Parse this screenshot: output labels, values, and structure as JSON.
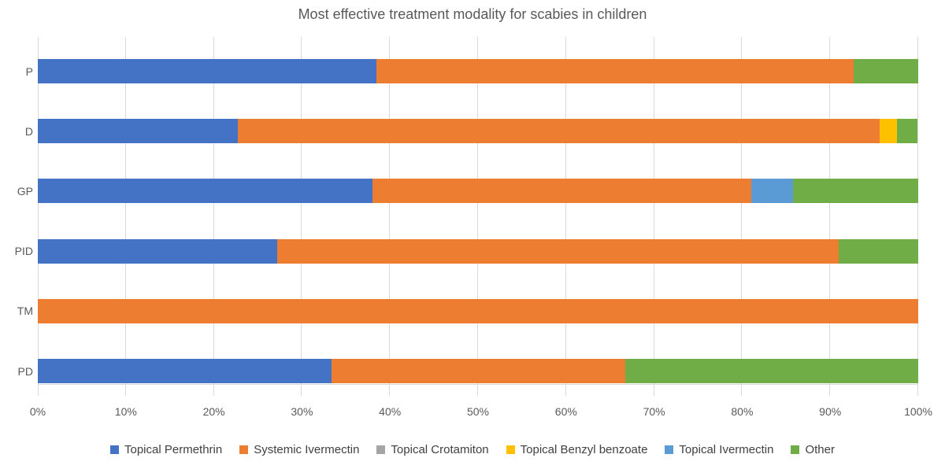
{
  "title": "Most effective treatment modality for scabies in children",
  "chart_data": {
    "type": "bar",
    "orientation": "horizontal",
    "stacked": true,
    "unit": "percent",
    "title": "Most effective treatment modality for scabies in children",
    "categories": [
      "P",
      "D",
      "GP",
      "PID",
      "TM",
      "PD"
    ],
    "series": [
      {
        "name": "Topical Permethrin",
        "color": "#4472C4",
        "values": [
          38.5,
          22.7,
          38.0,
          27.2,
          0,
          33.4
        ]
      },
      {
        "name": "Systemic Ivermectin",
        "color": "#ED7D31",
        "values": [
          54.2,
          72.9,
          43.0,
          63.8,
          100,
          33.3
        ]
      },
      {
        "name": "Topical Crotamiton",
        "color": "#A5A5A5",
        "values": [
          0,
          0,
          0,
          0,
          0,
          0
        ]
      },
      {
        "name": "Topical Benzyl benzoate",
        "color": "#FFC000",
        "values": [
          0,
          2.0,
          0,
          0,
          0,
          0
        ]
      },
      {
        "name": "Topical Ivermectin",
        "color": "#5B9BD5",
        "values": [
          0,
          0,
          4.8,
          0,
          0,
          0
        ]
      },
      {
        "name": "Other",
        "color": "#70AD47",
        "values": [
          7.3,
          2.3,
          14.2,
          9.0,
          0,
          33.3
        ]
      }
    ],
    "x_axis": {
      "min": 0,
      "max": 100,
      "tick_step": 10,
      "tick_labels": [
        "0%",
        "10%",
        "20%",
        "30%",
        "40%",
        "50%",
        "60%",
        "70%",
        "80%",
        "90%",
        "100%"
      ],
      "grid": true
    },
    "legend_position": "bottom",
    "xlabel": "",
    "ylabel": ""
  },
  "colors": {
    "grid": "#D9D9D9",
    "axis_text": "#595959",
    "legend_text": "#404040",
    "title_text": "#595959",
    "background": "#FFFFFF"
  }
}
